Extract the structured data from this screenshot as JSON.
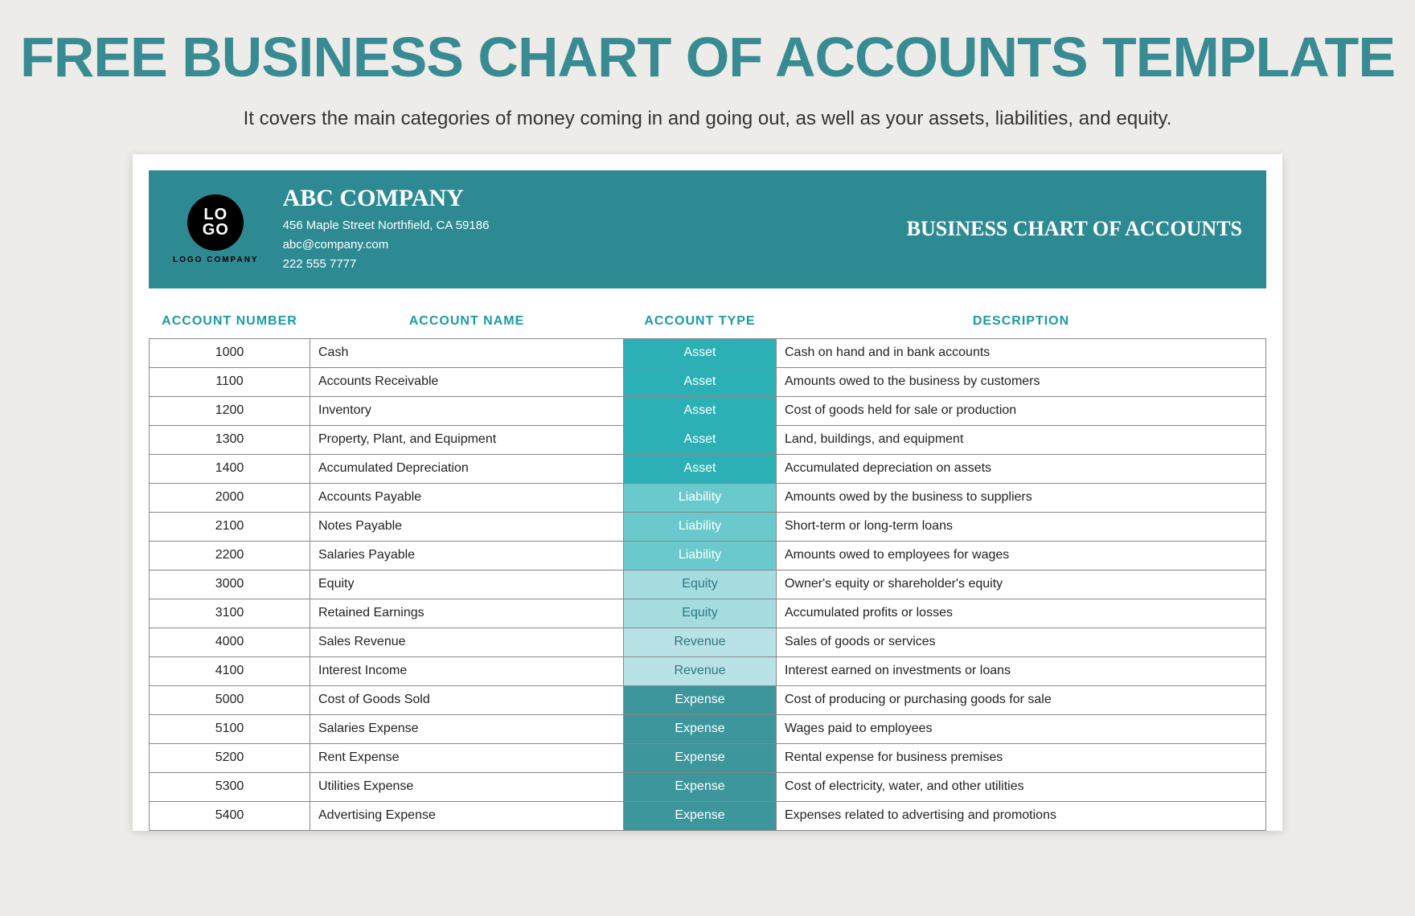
{
  "page": {
    "title": "FREE BUSINESS CHART OF ACCOUNTS TEMPLATE",
    "subtitle": "It covers the main categories of money coming in and going out, as well as your assets, liabilities, and equity."
  },
  "logo": {
    "line1": "LO",
    "line2": "GO",
    "caption": "LOGO COMPANY"
  },
  "company": {
    "name": "ABC COMPANY",
    "address": "456 Maple Street Northfield, CA 59186",
    "email": "abc@company.com",
    "phone": "222 555 7777"
  },
  "doc_title": "BUSINESS CHART OF ACCOUNTS",
  "table": {
    "headers": {
      "number": "ACCOUNT NUMBER",
      "name": "ACCOUNT NAME",
      "type": "ACCOUNT TYPE",
      "description": "DESCRIPTION"
    },
    "type_colors": {
      "Asset": "#2bb0b5",
      "Liability": "#6ac9cc",
      "Equity": "#a4dce0",
      "Revenue": "#b8e2e5",
      "Expense": "#3c969c"
    },
    "rows": [
      {
        "number": "1000",
        "name": "Cash",
        "type": "Asset",
        "description": "Cash on hand and in bank accounts"
      },
      {
        "number": "1100",
        "name": "Accounts Receivable",
        "type": "Asset",
        "description": "Amounts owed to the business by customers"
      },
      {
        "number": "1200",
        "name": "Inventory",
        "type": "Asset",
        "description": "Cost of goods held for sale or production"
      },
      {
        "number": "1300",
        "name": "Property, Plant, and Equipment",
        "type": "Asset",
        "description": "Land, buildings, and equipment"
      },
      {
        "number": "1400",
        "name": "Accumulated Depreciation",
        "type": "Asset",
        "description": "Accumulated depreciation on assets"
      },
      {
        "number": "2000",
        "name": "Accounts Payable",
        "type": "Liability",
        "description": "Amounts owed by the business to suppliers"
      },
      {
        "number": "2100",
        "name": "Notes Payable",
        "type": "Liability",
        "description": "Short-term or long-term loans"
      },
      {
        "number": "2200",
        "name": "Salaries Payable",
        "type": "Liability",
        "description": "Amounts owed to employees for wages"
      },
      {
        "number": "3000",
        "name": "Equity",
        "type": "Equity",
        "description": "Owner's equity or shareholder's equity"
      },
      {
        "number": "3100",
        "name": "Retained Earnings",
        "type": "Equity",
        "description": "Accumulated profits or losses"
      },
      {
        "number": "4000",
        "name": "Sales Revenue",
        "type": "Revenue",
        "description": "Sales of goods or services"
      },
      {
        "number": "4100",
        "name": "Interest Income",
        "type": "Revenue",
        "description": "Interest earned on investments or loans"
      },
      {
        "number": "5000",
        "name": "Cost of Goods Sold",
        "type": "Expense",
        "description": "Cost of producing or purchasing goods for sale"
      },
      {
        "number": "5100",
        "name": "Salaries Expense",
        "type": "Expense",
        "description": "Wages paid to employees"
      },
      {
        "number": "5200",
        "name": "Rent Expense",
        "type": "Expense",
        "description": "Rental expense for business premises"
      },
      {
        "number": "5300",
        "name": "Utilities Expense",
        "type": "Expense",
        "description": "Cost of electricity, water, and other utilities"
      },
      {
        "number": "5400",
        "name": "Advertising Expense",
        "type": "Expense",
        "description": "Expenses related to advertising and promotions"
      }
    ],
    "type_text_colors": {
      "Asset": "#ffffff",
      "Liability": "#ffffff",
      "Equity": "#2a7a80",
      "Revenue": "#2a7a80",
      "Expense": "#ffffff"
    }
  },
  "colors": {
    "background": "#edece8",
    "title": "#388b93",
    "header_bar": "#2e8a92",
    "th_color": "#1a9aa5",
    "border": "#888888",
    "doc_bg": "#ffffff"
  }
}
